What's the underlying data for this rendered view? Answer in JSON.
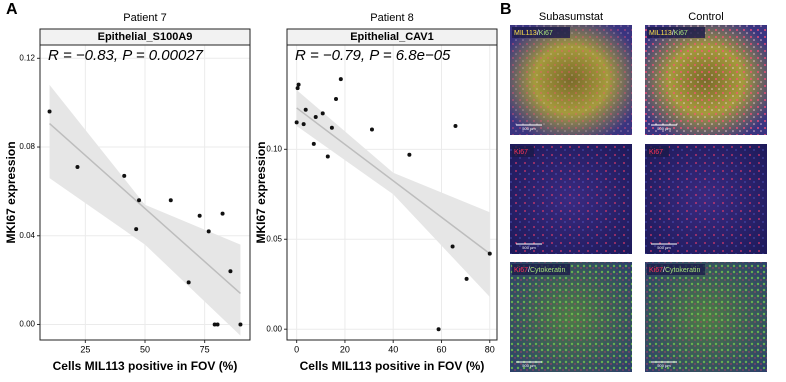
{
  "panel_labels": [
    "A",
    "B"
  ],
  "chart_data": [
    {
      "type": "scatter",
      "title": "Patient 7",
      "strip": "Epithelial_S100A9",
      "annotation": "R = −0.83, P = 0.00027",
      "xlabel": "Cells MIL113 positive in FOV (%)",
      "ylabel": "MKI67 expression",
      "x": [
        10,
        21.7,
        41.3,
        47.5,
        46.3,
        60.8,
        72.9,
        76.7,
        82.5,
        68.3,
        79.2,
        80.4,
        85.8,
        90
      ],
      "y": [
        0.096,
        0.071,
        0.067,
        0.056,
        0.043,
        0.056,
        0.049,
        0.042,
        0.05,
        0.019,
        0,
        0,
        0.024,
        0
      ],
      "color": "#111111",
      "xlim": [
        6,
        94
      ],
      "ylim": [
        -0.007,
        0.126
      ],
      "xticks": [
        25,
        50,
        75
      ],
      "yticks": [
        {
          "value": 0,
          "label": "0.00"
        },
        {
          "value": 0.04,
          "label": "0.04"
        },
        {
          "value": 0.08,
          "label": "0.08"
        },
        {
          "value": 0.12,
          "label": "0.12"
        }
      ],
      "grid": true,
      "fit": {
        "x": [
          10,
          90
        ],
        "y": [
          0.0906,
          0.014
        ],
        "color": "#bdbdbd"
      },
      "band": {
        "x": [
          10,
          50,
          90
        ],
        "lower": [
          0.066,
          0.036,
          -0.005
        ],
        "upper": [
          0.108,
          0.054,
          0.036
        ],
        "color": "#e6e6e6"
      }
    },
    {
      "type": "scatter",
      "title": "Patient 8",
      "strip": "Epithelial_CAV1",
      "annotation": "R = −0.79, P = 6.8e−05",
      "xlabel": "Cells MIL113 positive in FOV (%)",
      "ylabel": "MKI67 expression",
      "x": [
        0,
        0.4,
        0.8,
        3.75,
        2.9,
        7.9,
        7.1,
        10.8,
        14.6,
        12.9,
        16.3,
        18.3,
        31.2,
        46.7,
        64.6,
        65.8,
        58.8,
        70.4,
        80
      ],
      "y": [
        0.115,
        0.134,
        0.136,
        0.122,
        0.114,
        0.118,
        0.103,
        0.12,
        0.112,
        0.096,
        0.128,
        0.139,
        0.111,
        0.097,
        0.046,
        0.113,
        0,
        0.028,
        0.042
      ],
      "color": "#111111",
      "xlim": [
        -4,
        83
      ],
      "ylim": [
        -0.006,
        0.158
      ],
      "xticks": [
        0,
        20,
        40,
        60,
        80
      ],
      "yticks": [
        {
          "value": 0,
          "label": "0.00"
        },
        {
          "value": 0.05,
          "label": "0.05"
        },
        {
          "value": 0.1,
          "label": "0.10"
        }
      ],
      "grid": true,
      "fit": {
        "x": [
          0,
          80
        ],
        "y": [
          0.123,
          0.042
        ],
        "color": "#bdbdbd"
      },
      "band": {
        "x": [
          0,
          40,
          80
        ],
        "lower": [
          0.113,
          0.075,
          0.018
        ],
        "upper": [
          0.133,
          0.087,
          0.065
        ],
        "color": "#e6e6e6"
      }
    }
  ],
  "panel_b": {
    "columns": [
      "Subasumstat",
      "Control"
    ],
    "rows": [
      [
        [
          "MIL113",
          "/",
          "Ki67"
        ],
        [
          "MIL113",
          "/",
          "Ki67"
        ]
      ],
      [
        [
          "Ki67"
        ],
        [
          "Ki67"
        ]
      ],
      [
        [
          "Ki67",
          "/",
          "Cytokeratin"
        ],
        [
          "Ki67",
          "/",
          "Cytokeratin"
        ]
      ]
    ],
    "scale_bar": "500 µm"
  }
}
